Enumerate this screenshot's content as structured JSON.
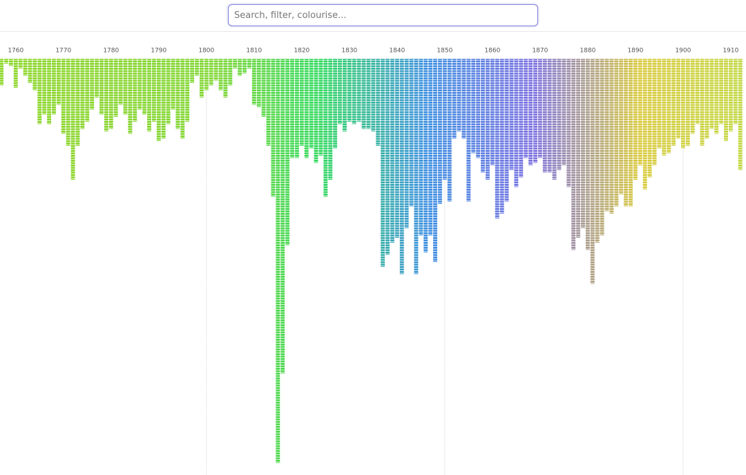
{
  "search": {
    "placeholder": "Search, filter, colourise..."
  },
  "chart_data": {
    "type": "bar",
    "x": [
      1757,
      1758,
      1759,
      1760,
      1761,
      1762,
      1763,
      1764,
      1765,
      1766,
      1767,
      1768,
      1769,
      1770,
      1771,
      1772,
      1773,
      1774,
      1775,
      1776,
      1777,
      1778,
      1779,
      1780,
      1781,
      1782,
      1783,
      1784,
      1785,
      1786,
      1787,
      1788,
      1789,
      1790,
      1791,
      1792,
      1793,
      1794,
      1795,
      1796,
      1797,
      1798,
      1799,
      1800,
      1801,
      1802,
      1803,
      1804,
      1805,
      1806,
      1807,
      1808,
      1809,
      1810,
      1811,
      1812,
      1813,
      1814,
      1815,
      1816,
      1817,
      1818,
      1819,
      1820,
      1821,
      1822,
      1823,
      1824,
      1825,
      1826,
      1827,
      1828,
      1829,
      1830,
      1831,
      1832,
      1833,
      1834,
      1835,
      1836,
      1837,
      1838,
      1839,
      1840,
      1841,
      1842,
      1843,
      1844,
      1845,
      1846,
      1847,
      1848,
      1849,
      1850,
      1851,
      1852,
      1853,
      1854,
      1855,
      1856,
      1857,
      1858,
      1859,
      1860,
      1861,
      1862,
      1863,
      1864,
      1865,
      1866,
      1867,
      1868,
      1869,
      1870,
      1871,
      1872,
      1873,
      1874,
      1875,
      1876,
      1877,
      1878,
      1879,
      1880,
      1881,
      1882,
      1883,
      1884,
      1885,
      1886,
      1887,
      1888,
      1889,
      1890,
      1891,
      1892,
      1893,
      1894,
      1895,
      1896,
      1897,
      1898,
      1899,
      1900,
      1901,
      1902,
      1903,
      1904,
      1905,
      1906,
      1907,
      1908,
      1909,
      1910,
      1911,
      1912
    ],
    "values": [
      11,
      2,
      3,
      12,
      4,
      7,
      10,
      13,
      27,
      23,
      27,
      23,
      19,
      31,
      36,
      50,
      36,
      29,
      26,
      21,
      16,
      23,
      30,
      29,
      24,
      19,
      23,
      31,
      26,
      21,
      23,
      30,
      26,
      34,
      33,
      27,
      21,
      29,
      33,
      26,
      10,
      7,
      16,
      13,
      11,
      9,
      13,
      16,
      11,
      4,
      7,
      6,
      4,
      19,
      20,
      24,
      36,
      57,
      167,
      130,
      77,
      41,
      41,
      36,
      41,
      37,
      43,
      40,
      57,
      50,
      37,
      27,
      30,
      26,
      27,
      26,
      29,
      29,
      30,
      36,
      86,
      81,
      76,
      74,
      89,
      70,
      61,
      89,
      73,
      80,
      73,
      84,
      60,
      50,
      59,
      33,
      30,
      33,
      59,
      39,
      41,
      47,
      50,
      44,
      66,
      64,
      59,
      46,
      53,
      49,
      41,
      44,
      43,
      41,
      47,
      47,
      50,
      46,
      44,
      53,
      79,
      74,
      70,
      79,
      93,
      76,
      73,
      63,
      64,
      61,
      56,
      61,
      61,
      50,
      44,
      54,
      49,
      44,
      37,
      40,
      39,
      36,
      33,
      37,
      36,
      31,
      27,
      36,
      33,
      29,
      31,
      27,
      34,
      30,
      27,
      46
    ],
    "xlim": [
      1756.7,
      1913.2
    ],
    "xticks": [
      1760,
      1770,
      1780,
      1790,
      1800,
      1810,
      1820,
      1830,
      1840,
      1850,
      1860,
      1870,
      1880,
      1890,
      1900,
      1910
    ],
    "x_grid": [
      1800,
      1850,
      1900
    ],
    "ylim": [
      0,
      172
    ],
    "color_scale": [
      "#8bd624",
      "#86d42a",
      "#7ed630",
      "#2ed85c",
      "#3a8ee0",
      "#7a6ee0",
      "#d8c838",
      "#c0d840"
    ]
  }
}
